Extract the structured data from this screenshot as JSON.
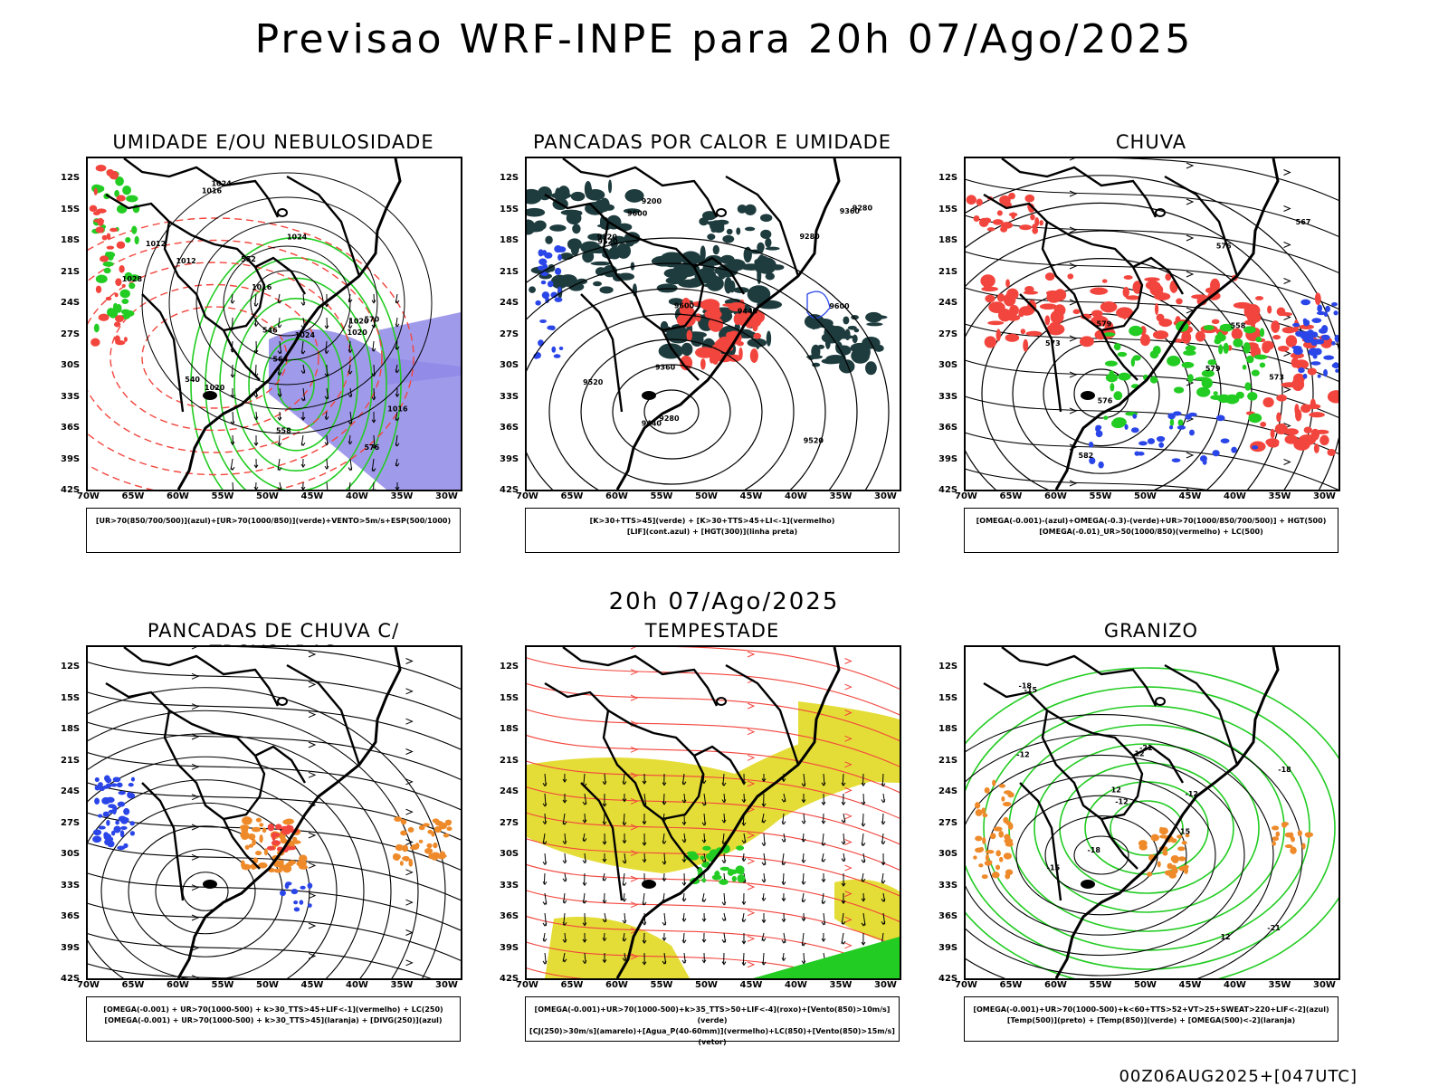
{
  "title": "Previsao WRF-INPE  para 20h 07/Ago/2025",
  "mid_title": "20h 07/Ago/2025",
  "footer": "00Z06AUG2025+[047UTC]",
  "axes": {
    "lat_ticks": [
      "12S",
      "15S",
      "18S",
      "21S",
      "24S",
      "27S",
      "30S",
      "33S",
      "36S",
      "39S",
      "42S"
    ],
    "lon_ticks": [
      "70W",
      "65W",
      "60W",
      "55W",
      "50W",
      "45W",
      "40W",
      "35W",
      "30W"
    ]
  },
  "panels": [
    {
      "id": "umidade",
      "title": "UMIDADE E/OU NEBULOSIDADE",
      "legend": [
        "[UR>70(850/700/500)](azul)+[UR>70(1000/850)](verde)+VENTO>5m/s+ESP(500/1000)"
      ],
      "contour_labels": [
        "1012",
        "1012",
        "1016",
        "1016",
        "1020",
        "1024",
        "1028",
        "1024",
        "1016",
        "1020",
        "1024",
        "1020",
        "576",
        "570",
        "564",
        "558",
        "552",
        "546",
        "540"
      ]
    },
    {
      "id": "pancadas-calor",
      "title": "PANCADAS POR CALOR E UMIDADE",
      "legend": [
        "[K>30+TTS>45](verde) + [K>30+TTS>45+LI<-1](vermelho)",
        "[LIF](cont.azul) + [HGT(300)](linha preta)"
      ],
      "contour_labels": [
        "9600",
        "9600",
        "9600",
        "9520",
        "9520",
        "9520",
        "9440",
        "9440",
        "9360",
        "9360",
        "9280",
        "9200",
        "9120",
        "9280",
        "9280"
      ]
    },
    {
      "id": "chuva",
      "title": "CHUVA",
      "legend": [
        "[OMEGA(-0.001)-(azul)+OMEGA(-0.3)-(verde)+UR>70(1000/850/700/500)] + HGT(500)",
        "[OMEGA(-0.01)_UR>50(1000/850)(vermelho) + LC(500)"
      ],
      "contour_labels": [
        "582",
        "579",
        "579",
        "576",
        "573",
        "576",
        "573",
        "567",
        "558"
      ]
    },
    {
      "id": "pancadas-trovoadas",
      "title": "PANCADAS DE CHUVA C/ TROVOADAS",
      "legend": [
        "[OMEGA(-0.001) + UR>70(1000-500) + k>30_TTS>45+LIF<-1](vermelho) + LC(250)",
        "[OMEGA(-0.001) + UR>70(1000-500) + k>30_TTS>45](laranja) + [DIVG(250)](azul)"
      ],
      "contour_labels": []
    },
    {
      "id": "tempestade",
      "title": "TEMPESTADE",
      "legend": [
        "[OMEGA(-0.001)+UR>70(1000-500)+k>35_TTS>50+LIF<-4](roxo)+[Vento(850)>10m/s](verde)",
        "[CJ(250)>30m/s](amarelo)+[Agua_P(40-60mm)](vermelho)+LC(850)+[Vento(850)>15m/s](vetor)"
      ],
      "contour_labels": []
    },
    {
      "id": "granizo",
      "title": "GRANIZO",
      "legend": [
        "[OMEGA(-0.001)+UR>70(1000-500)+k<60+TTS>52+VT>25+SWEAT>220+LIF<-2](azul)",
        "[Temp(500)](preto) + [Temp(850)](verde) + [OMEGA(500)<-2](laranja)"
      ],
      "contour_labels": [
        "-12",
        "-12",
        "-15",
        "-18",
        "-18",
        "-21",
        "-21",
        "-18",
        "-15",
        "-12",
        "12",
        "12",
        "12",
        "15"
      ]
    }
  ],
  "colors": {
    "green": "#22cc22",
    "blue": "#2a45e8",
    "lavender": "#8f88e8",
    "red": "#f2453d",
    "orange": "#ee8a2a",
    "yellow": "#e5dd37",
    "darkteal": "#1e3b3d",
    "black": "#000000"
  }
}
